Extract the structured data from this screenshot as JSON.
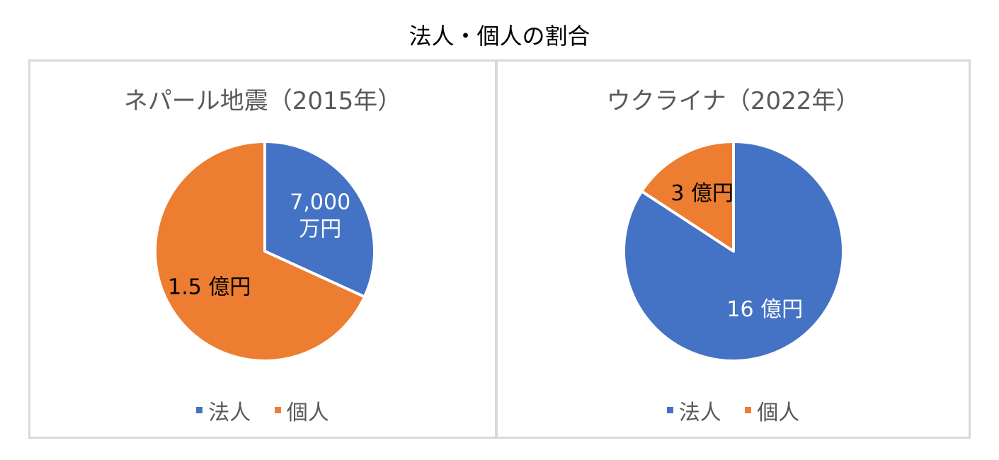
{
  "title": "法人・個人の割合",
  "chart_data": [
    {
      "type": "pie",
      "title": "ネパール地震（2015年）",
      "slices": [
        {
          "name": "法人",
          "value": 0.7,
          "label_lines": [
            "7,000",
            "万円"
          ],
          "color": "#4472C4",
          "label_color": "#ffffff"
        },
        {
          "name": "個人",
          "value": 1.5,
          "label_lines": [
            "1.5 億円"
          ],
          "color": "#ED7D31",
          "label_color": "#000000"
        }
      ],
      "legend": [
        "法人",
        "個人"
      ],
      "legend_position": "bottom",
      "value_unit": "億円"
    },
    {
      "type": "pie",
      "title": "ウクライナ（2022年）",
      "slices": [
        {
          "name": "法人",
          "value": 16,
          "label_lines": [
            "16 億円"
          ],
          "color": "#4472C4",
          "label_color": "#ffffff"
        },
        {
          "name": "個人",
          "value": 3,
          "label_lines": [
            "3 億円"
          ],
          "color": "#ED7D31",
          "label_color": "#000000"
        }
      ],
      "legend": [
        "法人",
        "個人"
      ],
      "legend_position": "bottom",
      "value_unit": "億円"
    }
  ]
}
